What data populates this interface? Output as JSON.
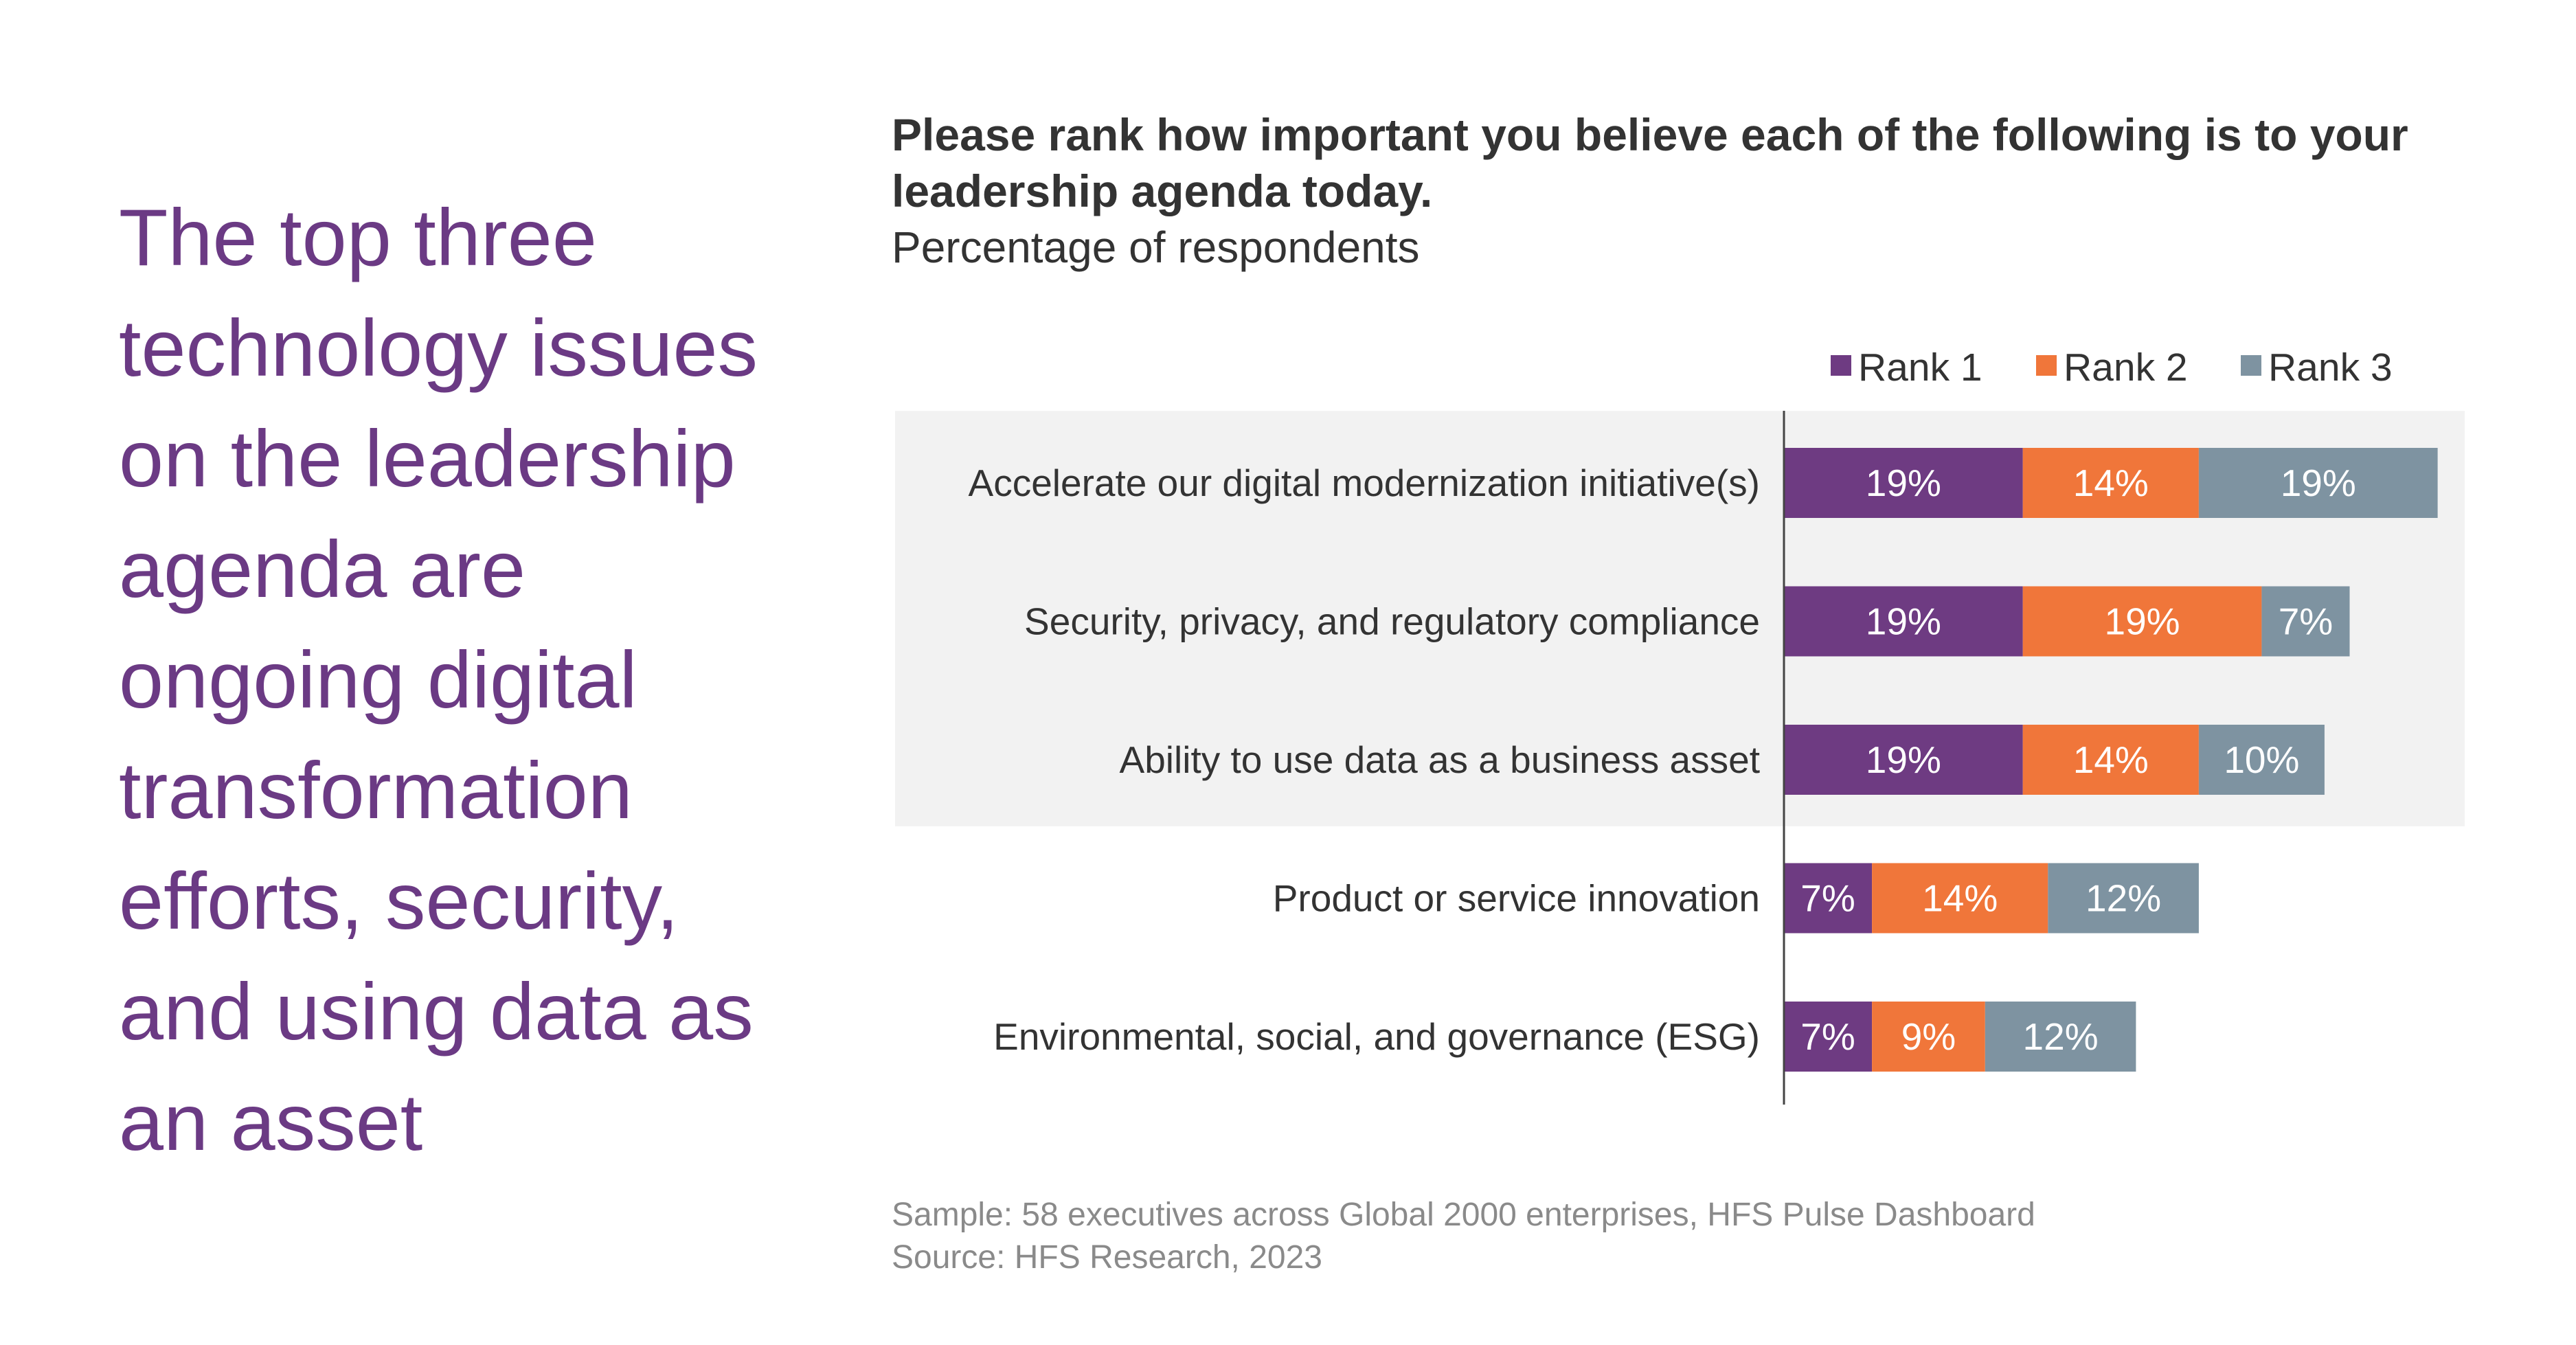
{
  "headline": "The top three technology issues on the leadership agenda are ongoing digital transformation efforts, security, and using data as an asset",
  "question": {
    "title": "Please rank how important you believe each of the following is to your leadership agenda today.",
    "subtitle": "Percentage of respondents"
  },
  "footnotes": {
    "sample": "Sample: 58 executives across Global 2000 enterprises, HFS Pulse Dashboard",
    "source": "Source: HFS Research, 2023"
  },
  "chart_data": {
    "type": "bar",
    "orientation": "horizontal",
    "stacked": true,
    "categories": [
      "Accelerate our digital modernization initiative(s)",
      "Security, privacy, and regulatory compliance",
      "Ability to use data as a business asset",
      "Product or service innovation",
      "Environmental, social, and governance (ESG)"
    ],
    "series": [
      {
        "name": "Rank 1",
        "color": "#6e3b82",
        "values": [
          19,
          19,
          19,
          7,
          7
        ]
      },
      {
        "name": "Rank 2",
        "color": "#f0763a",
        "values": [
          14,
          19,
          14,
          14,
          9
        ]
      },
      {
        "name": "Rank 3",
        "color": "#7e93a1",
        "values": [
          19,
          7,
          10,
          12,
          12
        ]
      }
    ],
    "value_suffix": "%",
    "highlighted_categories": [
      0,
      1,
      2
    ],
    "highlight_color": "#f2f2f2",
    "legend": "top-right",
    "grid": false
  }
}
